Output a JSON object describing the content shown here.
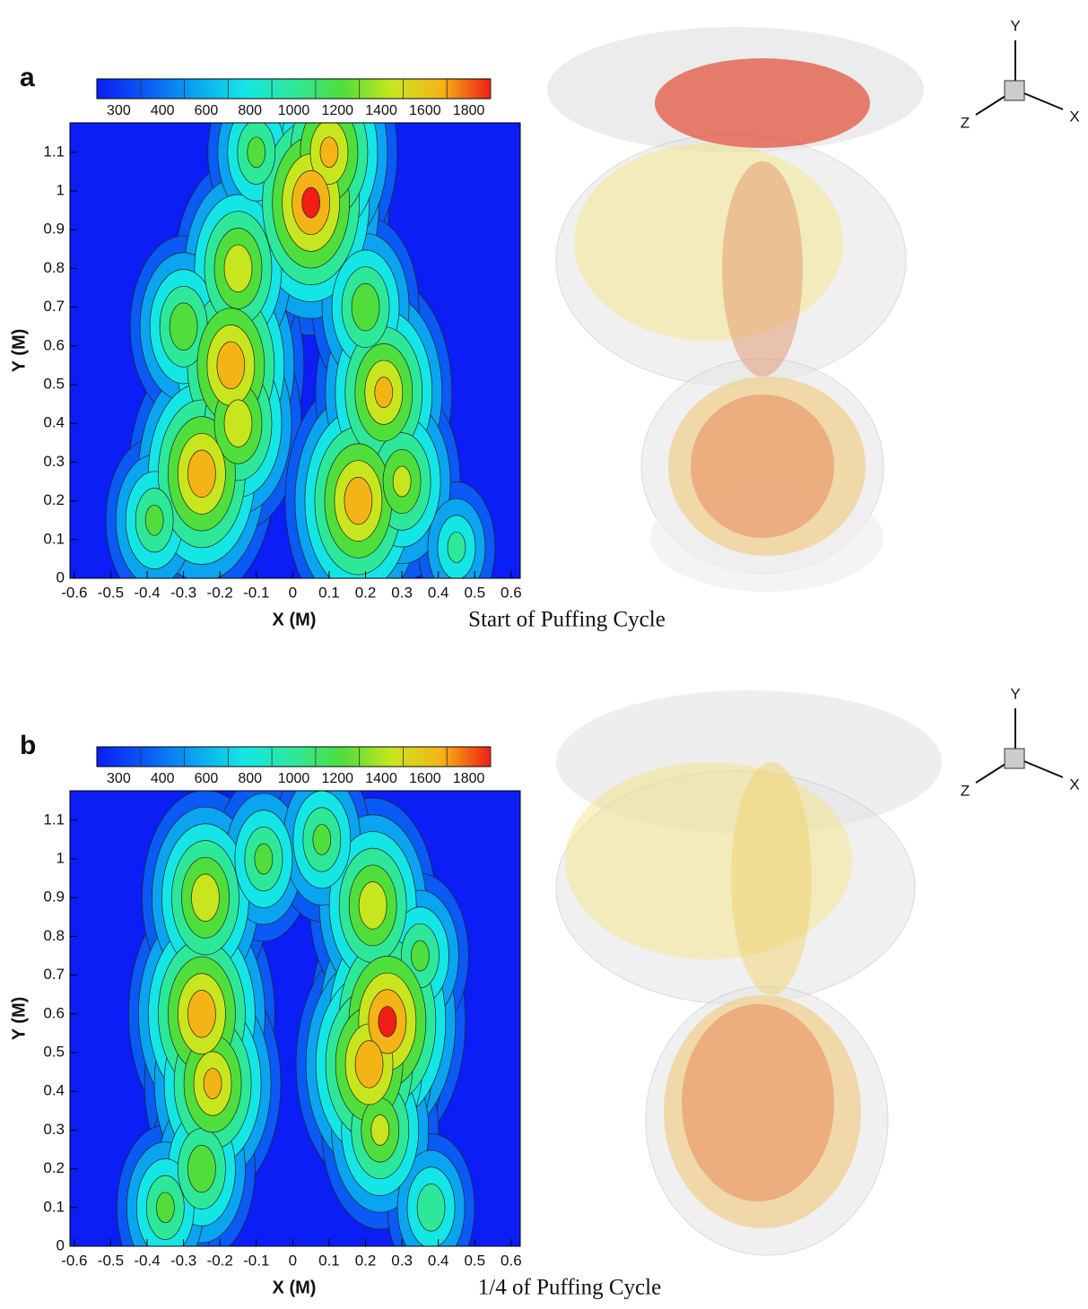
{
  "chart_data": [
    {
      "type": "contour",
      "panel_label": "a",
      "caption": "Start of Puffing Cycle",
      "xlabel": "X (M)",
      "ylabel": "Y (M)",
      "xlim": [
        -0.612,
        0.625
      ],
      "ylim": [
        0,
        1.176
      ],
      "xticks": [
        -0.6,
        -0.5,
        -0.4,
        -0.3,
        -0.2,
        -0.1,
        0,
        0.1,
        0.2,
        0.3,
        0.4,
        0.5,
        0.6
      ],
      "yticks": [
        0,
        0.1,
        0.2,
        0.3,
        0.4,
        0.5,
        0.6,
        0.7,
        0.8,
        0.9,
        1,
        1.1
      ],
      "colorbar": {
        "levels": [
          300,
          400,
          600,
          800,
          1000,
          1200,
          1400,
          1600,
          1800
        ],
        "colors": [
          "#0a1ef5",
          "#0a5af5",
          "#0aa4f0",
          "#14e6e6",
          "#2ee89a",
          "#50de3c",
          "#c8e61e",
          "#f5b416",
          "#f01e14"
        ]
      },
      "hotspots": [
        {
          "x": 0.05,
          "y": 0.97,
          "value": 1800
        },
        {
          "x": 0.1,
          "y": 1.1,
          "value": 1600
        },
        {
          "x": -0.17,
          "y": 0.55,
          "value": 1700
        },
        {
          "x": -0.15,
          "y": 0.8,
          "value": 1500
        },
        {
          "x": -0.25,
          "y": 0.27,
          "value": 1700
        },
        {
          "x": -0.15,
          "y": 0.4,
          "value": 1500
        },
        {
          "x": 0.18,
          "y": 0.2,
          "value": 1700
        },
        {
          "x": 0.25,
          "y": 0.48,
          "value": 1600
        },
        {
          "x": 0.3,
          "y": 0.25,
          "value": 1400
        },
        {
          "x": 0.2,
          "y": 0.7,
          "value": 1300
        },
        {
          "x": -0.3,
          "y": 0.65,
          "value": 1300
        },
        {
          "x": -0.38,
          "y": 0.15,
          "value": 1200
        },
        {
          "x": -0.1,
          "y": 1.1,
          "value": 1200
        },
        {
          "x": 0.45,
          "y": 0.08,
          "value": 1000
        }
      ],
      "triad_labels": {
        "y": "Y",
        "z": "Z",
        "x": "X"
      }
    },
    {
      "type": "contour",
      "panel_label": "b",
      "caption": "1/4 of Puffing Cycle",
      "xlabel": "X (M)",
      "ylabel": "Y (M)",
      "xlim": [
        -0.612,
        0.625
      ],
      "ylim": [
        0,
        1.176
      ],
      "xticks": [
        -0.6,
        -0.5,
        -0.4,
        -0.3,
        -0.2,
        -0.1,
        0,
        0.1,
        0.2,
        0.3,
        0.4,
        0.5,
        0.6
      ],
      "yticks": [
        0,
        0.1,
        0.2,
        0.3,
        0.4,
        0.5,
        0.6,
        0.7,
        0.8,
        0.9,
        1,
        1.1
      ],
      "colorbar": {
        "levels": [
          300,
          400,
          600,
          800,
          1000,
          1200,
          1400,
          1600,
          1800
        ],
        "colors": [
          "#0a1ef5",
          "#0a5af5",
          "#0aa4f0",
          "#14e6e6",
          "#2ee89a",
          "#50de3c",
          "#c8e61e",
          "#f5b416",
          "#f01e14"
        ]
      },
      "hotspots": [
        {
          "x": -0.25,
          "y": 0.6,
          "value": 1700
        },
        {
          "x": -0.22,
          "y": 0.42,
          "value": 1600
        },
        {
          "x": 0.26,
          "y": 0.58,
          "value": 1800
        },
        {
          "x": 0.21,
          "y": 0.47,
          "value": 1700
        },
        {
          "x": -0.24,
          "y": 0.9,
          "value": 1500
        },
        {
          "x": 0.22,
          "y": 0.88,
          "value": 1500
        },
        {
          "x": 0.24,
          "y": 0.3,
          "value": 1400
        },
        {
          "x": -0.25,
          "y": 0.2,
          "value": 1300
        },
        {
          "x": -0.08,
          "y": 1.0,
          "value": 1200
        },
        {
          "x": 0.08,
          "y": 1.05,
          "value": 1200
        },
        {
          "x": 0.35,
          "y": 0.75,
          "value": 1200
        },
        {
          "x": -0.35,
          "y": 0.1,
          "value": 1200
        },
        {
          "x": 0.38,
          "y": 0.1,
          "value": 1100
        }
      ],
      "triad_labels": {
        "y": "Y",
        "z": "Z",
        "x": "X"
      }
    }
  ]
}
